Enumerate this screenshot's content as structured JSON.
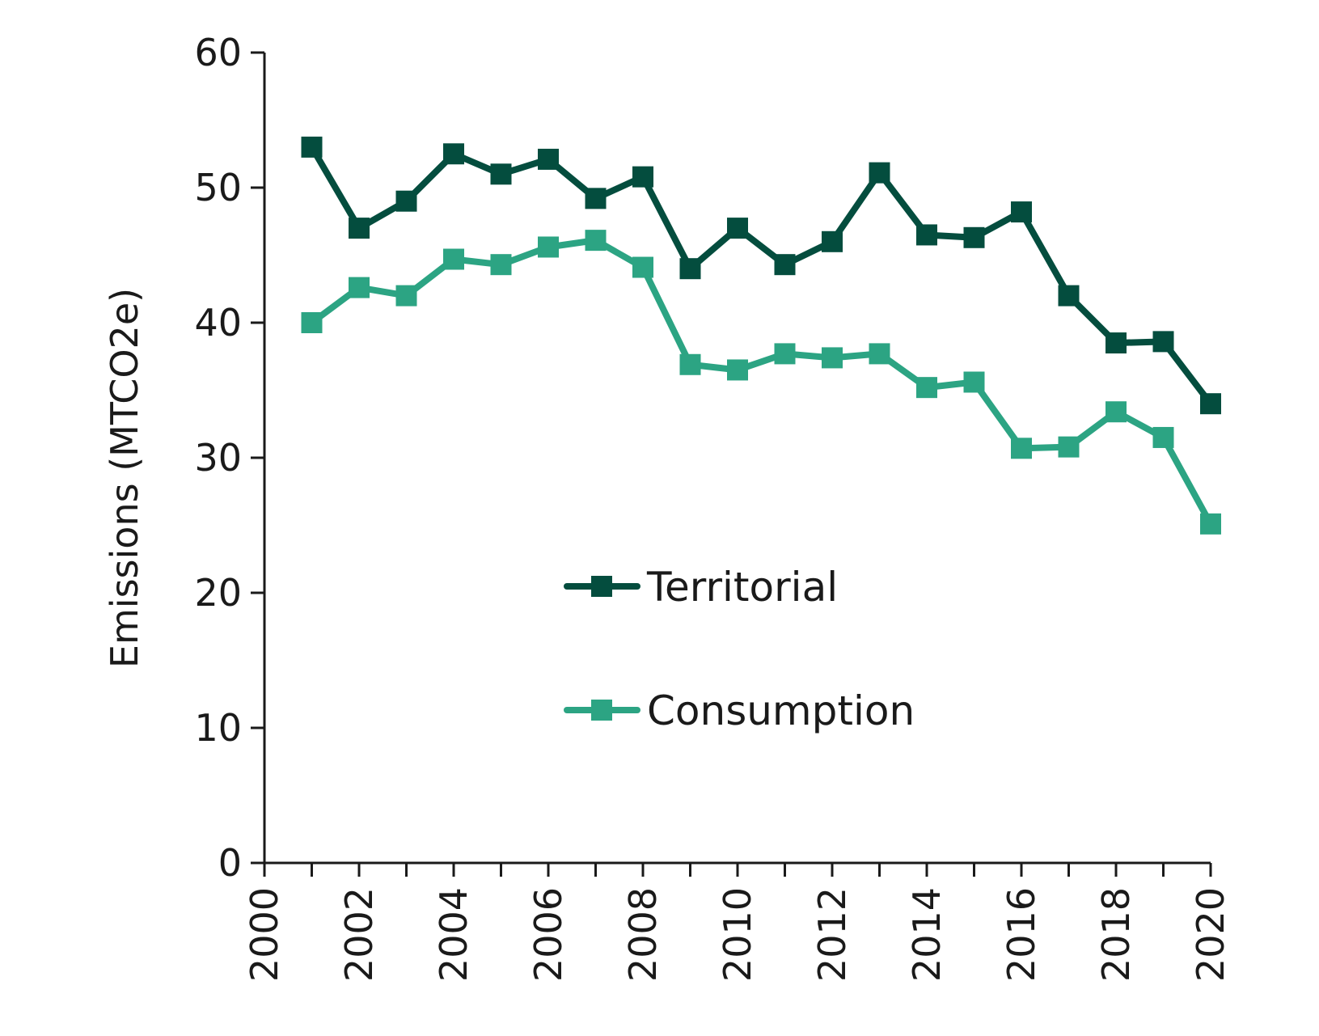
{
  "chart_data": {
    "type": "line",
    "title": "",
    "xlabel": "",
    "ylabel": "Emissions (MTCO2e)",
    "xlim": [
      2000,
      2020
    ],
    "ylim": [
      0,
      60
    ],
    "x_ticks": [
      "2000",
      "2002",
      "2004",
      "2006",
      "2008",
      "2010",
      "2012",
      "2014",
      "2016",
      "2018",
      "2020"
    ],
    "y_ticks": [
      "0",
      "10",
      "20",
      "30",
      "40",
      "50",
      "60"
    ],
    "grid": false,
    "legend_position": "center",
    "x": [
      2001,
      2002,
      2003,
      2004,
      2005,
      2006,
      2007,
      2008,
      2009,
      2010,
      2011,
      2012,
      2013,
      2014,
      2015,
      2016,
      2017,
      2018,
      2019,
      2020
    ],
    "series": [
      {
        "name": "Territorial",
        "color": "#044d3e",
        "marker": "square",
        "values": [
          53.0,
          47.0,
          49.0,
          52.5,
          51.0,
          52.1,
          49.2,
          50.8,
          44.0,
          47.0,
          44.3,
          46.0,
          51.1,
          46.5,
          46.3,
          48.2,
          42.0,
          38.5,
          38.6,
          34.0
        ]
      },
      {
        "name": "Consumption",
        "color": "#2ca483",
        "marker": "square",
        "values": [
          40.0,
          42.6,
          42.0,
          44.7,
          44.3,
          45.6,
          46.1,
          44.1,
          36.9,
          36.5,
          37.7,
          37.4,
          37.7,
          35.2,
          35.6,
          30.7,
          30.8,
          33.4,
          31.5,
          25.1
        ]
      }
    ]
  }
}
